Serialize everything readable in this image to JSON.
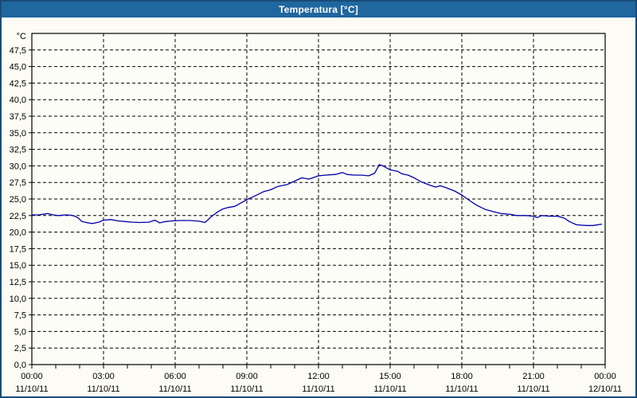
{
  "window": {
    "title": "Temperatura [°C]"
  },
  "colors": {
    "titlebar_bg": "#1f679e",
    "titlebar_text": "#ffffff",
    "window_border": "#1b4b78",
    "window_bg": "#fcfcf4",
    "plot_bg": "#fdfdf8",
    "grid": "#000000",
    "axis": "#000000",
    "tick_label": "#000000",
    "line": "#0000a8"
  },
  "chart_data": {
    "type": "line",
    "title": "Temperatura [°C]",
    "y_unit_label": "°C",
    "ylim": [
      0,
      50
    ],
    "y_tick_values": [
      0,
      2.5,
      5,
      7.5,
      10,
      12.5,
      15,
      17.5,
      20,
      22.5,
      25,
      27.5,
      30,
      32.5,
      35,
      37.5,
      40,
      42.5,
      45,
      47.5
    ],
    "y_tick_labels": [
      "0,0",
      "2,5",
      "5,0",
      "7,5",
      "10,0",
      "12,5",
      "15,0",
      "17,5",
      "20,0",
      "22,5",
      "25,0",
      "27,5",
      "30,0",
      "32,5",
      "35,0",
      "37,5",
      "40,0",
      "42,5",
      "45,0",
      "47,5"
    ],
    "x_tick_hours": [
      0,
      3,
      6,
      9,
      12,
      15,
      18,
      21,
      24
    ],
    "x_ticks": [
      {
        "time": "00:00",
        "date": "11/10/11"
      },
      {
        "time": "03:00",
        "date": "11/10/11"
      },
      {
        "time": "06:00",
        "date": "11/10/11"
      },
      {
        "time": "09:00",
        "date": "11/10/11"
      },
      {
        "time": "12:00",
        "date": "11/10/11"
      },
      {
        "time": "15:00",
        "date": "11/10/11"
      },
      {
        "time": "18:00",
        "date": "11/10/11"
      },
      {
        "time": "21:00",
        "date": "11/10/11"
      },
      {
        "time": "00:00",
        "date": "12/10/11"
      }
    ],
    "minor_x_tick_every_hours": 1,
    "grid": "dashed",
    "legend": "none",
    "series": [
      {
        "name": "Temperatura",
        "color": "#0000a8",
        "points": [
          [
            0,
            22.6
          ],
          [
            0.3,
            22.6
          ],
          [
            0.65,
            22.8
          ],
          [
            0.9,
            22.6
          ],
          [
            1.1,
            22.5
          ],
          [
            1.4,
            22.6
          ],
          [
            1.65,
            22.55
          ],
          [
            1.8,
            22.4
          ],
          [
            1.95,
            22.1
          ],
          [
            2.1,
            21.6
          ],
          [
            2.35,
            21.4
          ],
          [
            2.55,
            21.3
          ],
          [
            2.8,
            21.5
          ],
          [
            3.0,
            21.8
          ],
          [
            3.3,
            21.9
          ],
          [
            3.6,
            21.7
          ],
          [
            3.9,
            21.6
          ],
          [
            4.2,
            21.5
          ],
          [
            4.5,
            21.45
          ],
          [
            4.9,
            21.5
          ],
          [
            5.15,
            21.8
          ],
          [
            5.35,
            21.4
          ],
          [
            5.6,
            21.6
          ],
          [
            5.9,
            21.7
          ],
          [
            6.2,
            21.75
          ],
          [
            6.6,
            21.75
          ],
          [
            7.0,
            21.65
          ],
          [
            7.25,
            21.45
          ],
          [
            7.5,
            22.3
          ],
          [
            7.8,
            23.1
          ],
          [
            8.0,
            23.5
          ],
          [
            8.2,
            23.7
          ],
          [
            8.5,
            23.9
          ],
          [
            8.8,
            24.5
          ],
          [
            9.0,
            24.9
          ],
          [
            9.3,
            25.4
          ],
          [
            9.7,
            26.1
          ],
          [
            10.0,
            26.4
          ],
          [
            10.3,
            26.9
          ],
          [
            10.7,
            27.2
          ],
          [
            11.0,
            27.7
          ],
          [
            11.3,
            28.2
          ],
          [
            11.6,
            28.0
          ],
          [
            12.0,
            28.5
          ],
          [
            12.3,
            28.6
          ],
          [
            12.7,
            28.7
          ],
          [
            13.0,
            29.0
          ],
          [
            13.2,
            28.7
          ],
          [
            13.5,
            28.6
          ],
          [
            13.8,
            28.6
          ],
          [
            14.1,
            28.5
          ],
          [
            14.35,
            28.9
          ],
          [
            14.55,
            30.2
          ],
          [
            14.7,
            30.0
          ],
          [
            15.0,
            29.4
          ],
          [
            15.3,
            29.2
          ],
          [
            15.5,
            28.8
          ],
          [
            15.75,
            28.6
          ],
          [
            16.0,
            28.2
          ],
          [
            16.3,
            27.6
          ],
          [
            16.65,
            27.1
          ],
          [
            16.9,
            26.8
          ],
          [
            17.1,
            27.0
          ],
          [
            17.35,
            26.7
          ],
          [
            17.7,
            26.2
          ],
          [
            18.0,
            25.6
          ],
          [
            18.35,
            24.7
          ],
          [
            18.65,
            24.0
          ],
          [
            19.0,
            23.4
          ],
          [
            19.3,
            23.1
          ],
          [
            19.65,
            22.8
          ],
          [
            20.0,
            22.7
          ],
          [
            20.3,
            22.5
          ],
          [
            20.7,
            22.5
          ],
          [
            21.0,
            22.4
          ],
          [
            21.15,
            22.2
          ],
          [
            21.35,
            22.5
          ],
          [
            21.7,
            22.4
          ],
          [
            22.0,
            22.4
          ],
          [
            22.3,
            22.1
          ],
          [
            22.5,
            21.6
          ],
          [
            22.8,
            21.1
          ],
          [
            23.2,
            21.0
          ],
          [
            23.5,
            21.0
          ],
          [
            23.85,
            21.2
          ]
        ]
      }
    ]
  }
}
